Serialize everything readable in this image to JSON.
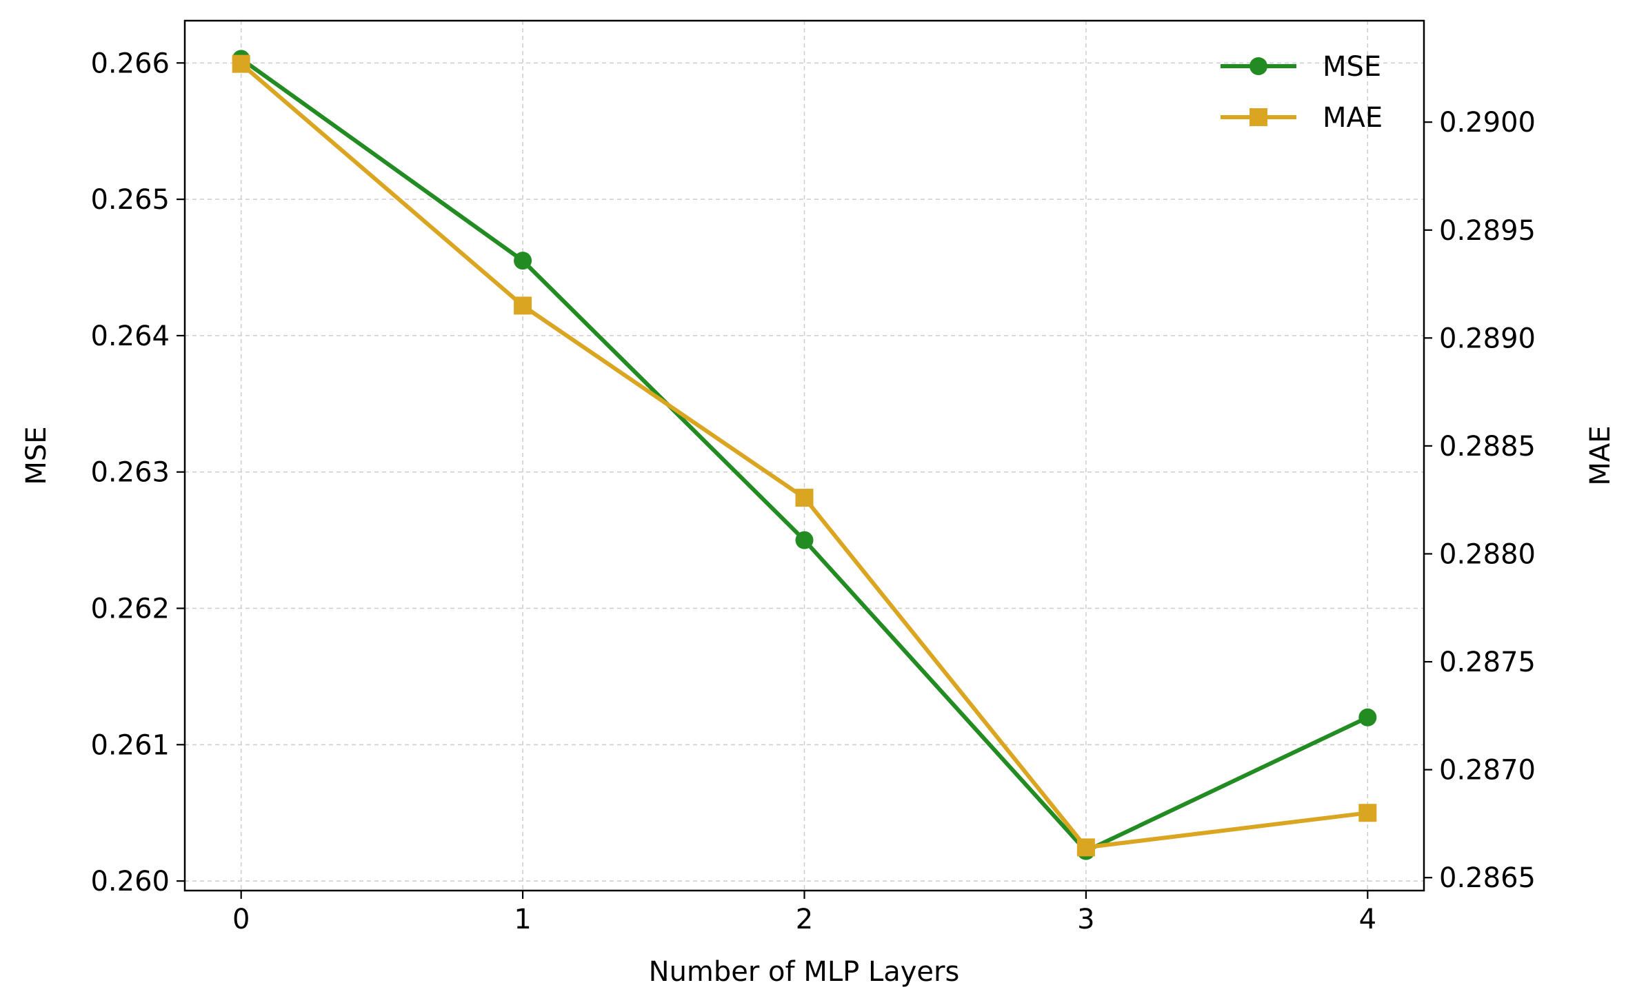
{
  "chart_data": {
    "type": "line",
    "xlabel": "Number of MLP Layers",
    "ylabel_left": "MSE",
    "ylabel_right": "MAE",
    "x": [
      0,
      1,
      2,
      3,
      4
    ],
    "x_ticks": [
      "0",
      "1",
      "2",
      "3",
      "4"
    ],
    "xlim": [
      -0.2,
      4.2
    ],
    "left_axis": {
      "ylim": [
        0.25993,
        0.26631
      ],
      "ticks": [
        0.26,
        0.261,
        0.262,
        0.263,
        0.264,
        0.265,
        0.266
      ],
      "tick_labels": [
        "0.260",
        "0.261",
        "0.262",
        "0.263",
        "0.264",
        "0.265",
        "0.266"
      ]
    },
    "right_axis": {
      "ylim": [
        0.28644,
        0.29047
      ],
      "ticks": [
        0.2865,
        0.287,
        0.2875,
        0.288,
        0.2885,
        0.289,
        0.2895,
        0.29
      ],
      "tick_labels": [
        "0.2865",
        "0.2870",
        "0.2875",
        "0.2880",
        "0.2885",
        "0.2890",
        "0.2895",
        "0.2900"
      ]
    },
    "series": [
      {
        "name": "MSE",
        "axis": "left",
        "marker": "circle",
        "color": "#228b22",
        "values": [
          0.26603,
          0.26455,
          0.2625,
          0.26022,
          0.2612
        ]
      },
      {
        "name": "MAE",
        "axis": "right",
        "marker": "square",
        "color": "#daa520",
        "values": [
          0.29027,
          0.28915,
          0.28826,
          0.28664,
          0.2868
        ]
      }
    ],
    "grid": true,
    "legend": {
      "placement": "top-right",
      "entries": [
        "MSE",
        "MAE"
      ]
    }
  }
}
